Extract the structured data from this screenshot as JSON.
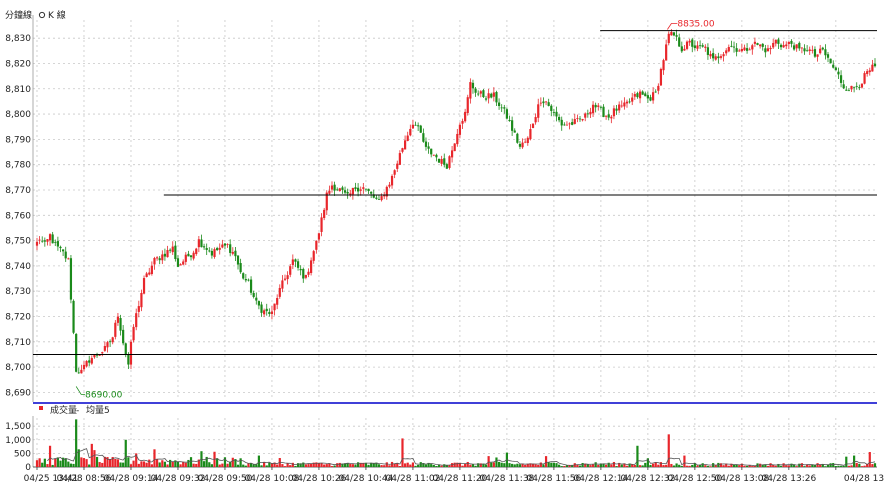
{
  "toolbar": {
    "tab_minute": "分鐘線",
    "tab_kline": "K 線"
  },
  "volume_legend": {
    "label": "成交量",
    "dash": "-",
    "ma_label": "均量5"
  },
  "colors": {
    "up": "#e8262b",
    "down": "#1a8a1a",
    "grid": "#c8c8c8",
    "hline": "#000000",
    "separator": "#0000cc",
    "volume_ma": "#555555"
  },
  "chart_data": {
    "type": "candlestick",
    "price": {
      "ylim": [
        8687,
        8836
      ],
      "yticks": [
        "8,690",
        "8,700",
        "8,710",
        "8,720",
        "8,730",
        "8,740",
        "8,750",
        "8,760",
        "8,770",
        "8,780",
        "8,790",
        "8,800",
        "8,810",
        "8,820",
        "8,830"
      ],
      "ytick_values": [
        8690,
        8700,
        8710,
        8720,
        8730,
        8740,
        8750,
        8760,
        8770,
        8780,
        8790,
        8800,
        8810,
        8820,
        8830
      ],
      "anchors": [
        [
          0,
          8749
        ],
        [
          1,
          8751
        ],
        [
          3,
          8748
        ],
        [
          5,
          8752
        ],
        [
          7,
          8748
        ],
        [
          10,
          8745
        ],
        [
          12,
          8742
        ],
        [
          15,
          8699
        ],
        [
          17,
          8698
        ],
        [
          20,
          8703
        ],
        [
          23,
          8705
        ],
        [
          26,
          8707
        ],
        [
          29,
          8712
        ],
        [
          31,
          8721
        ],
        [
          33,
          8710
        ],
        [
          35,
          8701
        ],
        [
          37,
          8716
        ],
        [
          41,
          8734
        ],
        [
          45,
          8742
        ],
        [
          49,
          8745
        ],
        [
          52,
          8747
        ],
        [
          54,
          8740
        ],
        [
          57,
          8743
        ],
        [
          60,
          8746
        ],
        [
          62,
          8750
        ],
        [
          64,
          8748
        ],
        [
          67,
          8745
        ],
        [
          70,
          8747
        ],
        [
          73,
          8748
        ],
        [
          76,
          8744
        ],
        [
          78,
          8737
        ],
        [
          81,
          8733
        ],
        [
          84,
          8725
        ],
        [
          87,
          8722
        ],
        [
          90,
          8721
        ],
        [
          92,
          8728
        ],
        [
          95,
          8735
        ],
        [
          98,
          8742
        ],
        [
          100,
          8739
        ],
        [
          103,
          8735
        ],
        [
          105,
          8743
        ],
        [
          107,
          8749
        ],
        [
          109,
          8758
        ],
        [
          111,
          8768
        ],
        [
          113,
          8772
        ],
        [
          116,
          8770
        ],
        [
          119,
          8767
        ],
        [
          122,
          8771
        ],
        [
          125,
          8771
        ],
        [
          128,
          8768
        ],
        [
          131,
          8765
        ],
        [
          133,
          8769
        ],
        [
          136,
          8775
        ],
        [
          138,
          8781
        ],
        [
          141,
          8790
        ],
        [
          144,
          8797
        ],
        [
          147,
          8792
        ],
        [
          149,
          8786
        ],
        [
          152,
          8784
        ],
        [
          155,
          8781
        ],
        [
          157,
          8780
        ],
        [
          159,
          8786
        ],
        [
          162,
          8797
        ],
        [
          164,
          8800
        ],
        [
          166,
          8812
        ],
        [
          169,
          8808
        ],
        [
          172,
          8807
        ],
        [
          175,
          8807
        ],
        [
          177,
          8804
        ],
        [
          180,
          8799
        ],
        [
          182,
          8794
        ],
        [
          185,
          8787
        ],
        [
          188,
          8790
        ],
        [
          190,
          8797
        ],
        [
          193,
          8806
        ],
        [
          195,
          8805
        ],
        [
          198,
          8800
        ],
        [
          201,
          8796
        ],
        [
          204,
          8796
        ],
        [
          207,
          8797
        ],
        [
          210,
          8799
        ],
        [
          213,
          8804
        ],
        [
          216,
          8801
        ],
        [
          219,
          8799
        ],
        [
          222,
          8802
        ],
        [
          225,
          8803
        ],
        [
          228,
          8806
        ],
        [
          231,
          8808
        ],
        [
          234,
          8806
        ],
        [
          237,
          8808
        ],
        [
          240,
          8822
        ],
        [
          242,
          8831
        ],
        [
          244,
          8831
        ],
        [
          247,
          8826
        ],
        [
          250,
          8828
        ],
        [
          253,
          8826
        ],
        [
          256,
          8826
        ],
        [
          259,
          8821
        ],
        [
          262,
          8824
        ],
        [
          265,
          8827
        ],
        [
          268,
          8826
        ],
        [
          271,
          8825
        ],
        [
          274,
          8828
        ],
        [
          277,
          8827
        ],
        [
          280,
          8825
        ],
        [
          283,
          8829
        ],
        [
          286,
          8827
        ],
        [
          289,
          8828
        ],
        [
          292,
          8825
        ],
        [
          295,
          8826
        ],
        [
          298,
          8823
        ],
        [
          301,
          8825
        ],
        [
          304,
          8820
        ],
        [
          307,
          8815
        ],
        [
          309,
          8811
        ],
        [
          312,
          8810
        ],
        [
          315,
          8812
        ],
        [
          318,
          8816
        ],
        [
          320,
          8818
        ]
      ],
      "high": 8835.0,
      "high_label": "8835.00",
      "low": 8690.0,
      "low_label": "8690.00",
      "hlines": [
        {
          "y": 8833,
          "from_pct": 0.672,
          "to_pct": 1.0
        },
        {
          "y": 8768,
          "from_pct": 0.155,
          "to_pct": 1.0
        },
        {
          "y": 8705,
          "from_pct": 0.0,
          "to_pct": 1.0
        }
      ]
    },
    "volume": {
      "ylim": [
        0,
        1800
      ],
      "yticks": [
        "0",
        "500",
        "1,000",
        "1,500"
      ],
      "ytick_values": [
        0,
        500,
        1000,
        1500
      ],
      "spikes": [
        [
          0,
          250
        ],
        [
          5,
          780
        ],
        [
          15,
          1750
        ],
        [
          16,
          650
        ],
        [
          21,
          850
        ],
        [
          22,
          620
        ],
        [
          34,
          1000
        ],
        [
          38,
          500
        ],
        [
          45,
          650
        ],
        [
          63,
          580
        ],
        [
          68,
          560
        ],
        [
          85,
          420
        ],
        [
          93,
          330
        ],
        [
          140,
          1050
        ],
        [
          173,
          400
        ],
        [
          176,
          350
        ],
        [
          180,
          530
        ],
        [
          195,
          400
        ],
        [
          230,
          780
        ],
        [
          234,
          320
        ],
        [
          242,
          1200
        ],
        [
          248,
          420
        ],
        [
          310,
          380
        ],
        [
          313,
          420
        ],
        [
          319,
          550
        ]
      ]
    },
    "x": {
      "count": 322,
      "tick_labels": [
        "04/25 13:41",
        "04/28 08:56",
        "04/28 09:14",
        "04/28 09:32",
        "04/28 09:50",
        "04/28 10:08",
        "04/28 10:26",
        "04/28 10:44",
        "04/28 11:02",
        "04/28 11:20",
        "04/28 11:38",
        "04/28 11:56",
        "04/28 12:14",
        "04/28 12:32",
        "04/28 12:50",
        "04/28 13:08",
        "04/28 13:26",
        "04/28 13"
      ],
      "tick_index": [
        0,
        18,
        36,
        54,
        72,
        90,
        108,
        126,
        144,
        162,
        180,
        198,
        216,
        234,
        252,
        270,
        288,
        306
      ]
    }
  }
}
